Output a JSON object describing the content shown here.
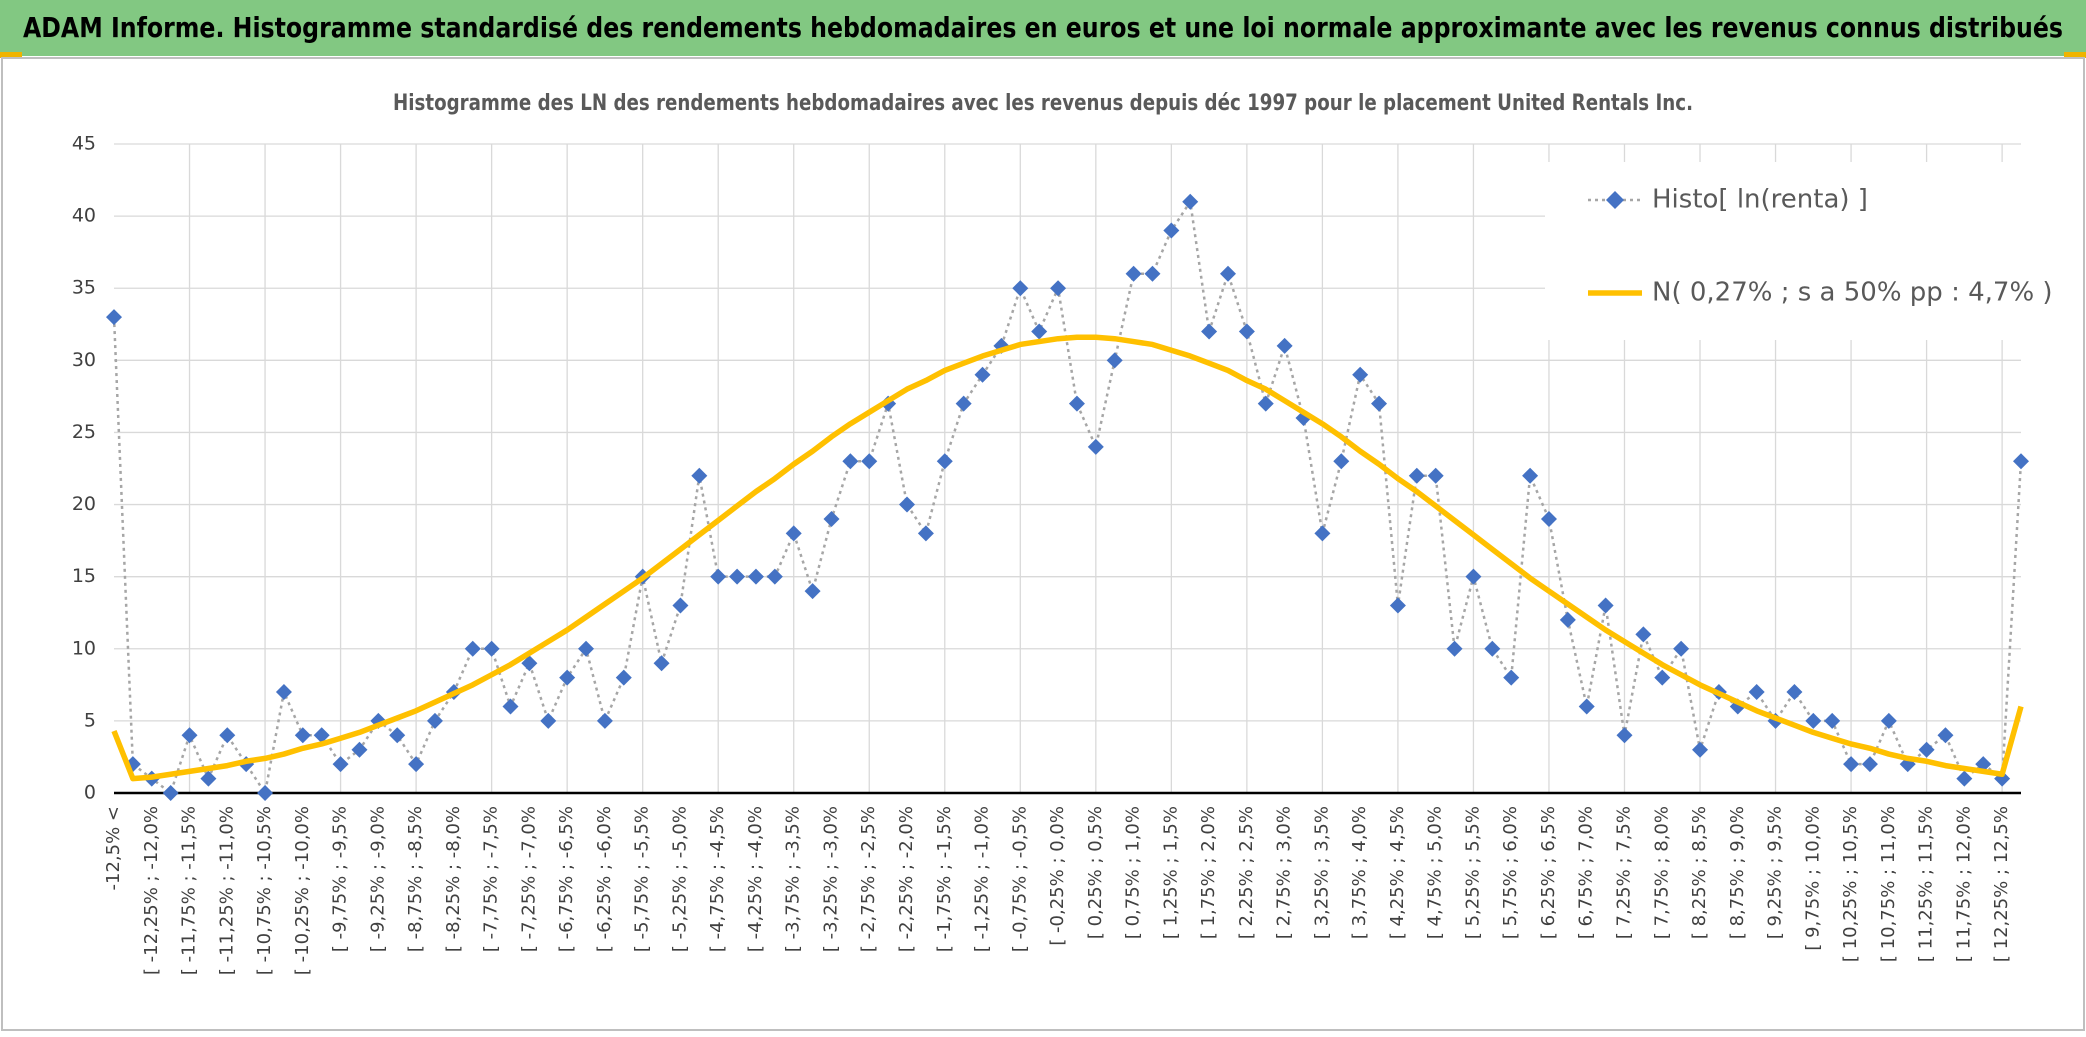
{
  "header": {
    "title": "ADAM Informe. Histogramme standardisé des rendements hebdomadaires en euros et une loi normale approximante avec les revenus connus distribués"
  },
  "chart_data": {
    "type": "line",
    "title": "Histogramme des LN des rendements hebdomadaires avec les revenus depuis déc 1997 pour le placement United Rentals Inc.",
    "categories": [
      "-12,5% <",
      null,
      "[ -12,25% ; -12,0%",
      null,
      "[ -11,75% ; -11,5%",
      null,
      "[ -11,25% ; -11,0%",
      null,
      "[ -10,75% ; -10,5%",
      null,
      "[ -10,25% ; -10,0%",
      null,
      "[ -9,75% ; -9,5%",
      null,
      "[ -9,25% ; -9,0%",
      null,
      "[ -8,75% ; -8,5%",
      null,
      "[ -8,25% ; -8,0%",
      null,
      "[ -7,75% ; -7,5%",
      null,
      "[ -7,25% ; -7,0%",
      null,
      "[ -6,75% ; -6,5%",
      null,
      "[ -6,25% ; -6,0%",
      null,
      "[ -5,75% ; -5,5%",
      null,
      "[ -5,25% ; -5,0%",
      null,
      "[ -4,75% ; -4,5%",
      null,
      "[ -4,25% ; -4,0%",
      null,
      "[ -3,75% ; -3,5%",
      null,
      "[ -3,25% ; -3,0%",
      null,
      "[ -2,75% ; -2,5%",
      null,
      "[ -2,25% ; -2,0%",
      null,
      "[ -1,75% ; -1,5%",
      null,
      "[ -1,25% ; -1,0%",
      null,
      "[ -0,75% ; -0,5%",
      null,
      "[ -0,25% ; 0,0%",
      null,
      "[ 0,25% ; 0,5%",
      null,
      "[ 0,75% ; 1,0%",
      null,
      "[ 1,25% ; 1,5%",
      null,
      "[ 1,75% ; 2,0%",
      null,
      "[ 2,25% ; 2,5%",
      null,
      "[ 2,75% ; 3,0%",
      null,
      "[ 3,25% ; 3,5%",
      null,
      "[ 3,75% ; 4,0%",
      null,
      "[ 4,25% ; 4,5%",
      null,
      "[ 4,75% ; 5,0%",
      null,
      "[ 5,25% ; 5,5%",
      null,
      "[ 5,75% ; 6,0%",
      null,
      "[ 6,25% ; 6,5%",
      null,
      "[ 6,75% ; 7,0%",
      null,
      "[ 7,25% ; 7,5%",
      null,
      "[ 7,75% ; 8,0%",
      null,
      "[ 8,25% ; 8,5%",
      null,
      "[ 8,75% ; 9,0%",
      null,
      "[ 9,25% ; 9,5%",
      null,
      "[ 9,75% ; 10,0%",
      null,
      "[ 10,25% ; 10,5%",
      null,
      "[ 10,75% ; 11,0%",
      null,
      "[ 11,25% ; 11,5%",
      null,
      "[ 11,75% ; 12,0%",
      null,
      "[ 12,25% ; 12,5%",
      null
    ],
    "series": [
      {
        "name": "Histo[ ln(renta) ]",
        "color": "#4472c4",
        "line_color": "#a6a6a6",
        "marker": "diamond",
        "values": [
          33,
          2,
          1,
          0,
          4,
          1,
          4,
          2,
          0,
          7,
          4,
          4,
          2,
          3,
          5,
          4,
          2,
          5,
          7,
          10,
          10,
          6,
          9,
          5,
          8,
          10,
          5,
          8,
          15,
          9,
          13,
          22,
          15,
          15,
          15,
          15,
          18,
          14,
          19,
          23,
          23,
          27,
          20,
          18,
          23,
          27,
          29,
          31,
          35,
          32,
          35,
          27,
          24,
          30,
          36,
          36,
          39,
          41,
          32,
          36,
          32,
          27,
          31,
          26,
          18,
          23,
          29,
          27,
          13,
          22,
          22,
          10,
          15,
          10,
          8,
          22,
          19,
          12,
          6,
          13,
          4,
          11,
          8,
          10,
          3,
          7,
          6,
          7,
          5,
          7,
          5,
          5,
          2,
          2,
          5,
          2,
          3,
          4,
          1,
          2,
          1,
          23
        ]
      },
      {
        "name": "N( 0,27% ; s a 50% pp : 4,7% )",
        "color": "#ffc000",
        "line_color": "#ffc000",
        "marker": "none",
        "values": [
          4.3,
          1.0,
          1.1,
          1.3,
          1.5,
          1.7,
          1.9,
          2.2,
          2.4,
          2.7,
          3.1,
          3.4,
          3.8,
          4.2,
          4.7,
          5.2,
          5.7,
          6.3,
          6.9,
          7.5,
          8.2,
          8.9,
          9.7,
          10.5,
          11.3,
          12.2,
          13.1,
          14.0,
          14.9,
          15.9,
          16.9,
          17.9,
          18.9,
          19.9,
          20.9,
          21.8,
          22.8,
          23.7,
          24.7,
          25.6,
          26.4,
          27.2,
          28.0,
          28.6,
          29.3,
          29.8,
          30.3,
          30.7,
          31.1,
          31.3,
          31.5,
          31.6,
          31.6,
          31.5,
          31.3,
          31.1,
          30.7,
          30.3,
          29.8,
          29.3,
          28.6,
          28.0,
          27.2,
          26.4,
          25.6,
          24.7,
          23.7,
          22.8,
          21.8,
          20.9,
          19.9,
          18.9,
          17.9,
          16.9,
          15.9,
          14.9,
          14.0,
          13.1,
          12.2,
          11.3,
          10.5,
          9.7,
          8.9,
          8.2,
          7.5,
          6.9,
          6.3,
          5.7,
          5.2,
          4.7,
          4.2,
          3.8,
          3.4,
          3.1,
          2.7,
          2.4,
          2.2,
          1.9,
          1.7,
          1.5,
          1.3,
          6.0
        ]
      }
    ],
    "ylim": [
      0,
      45
    ],
    "yticks": [
      0,
      5,
      10,
      15,
      20,
      25,
      30,
      35,
      40,
      45
    ],
    "grid": true,
    "legend": "top-right"
  }
}
